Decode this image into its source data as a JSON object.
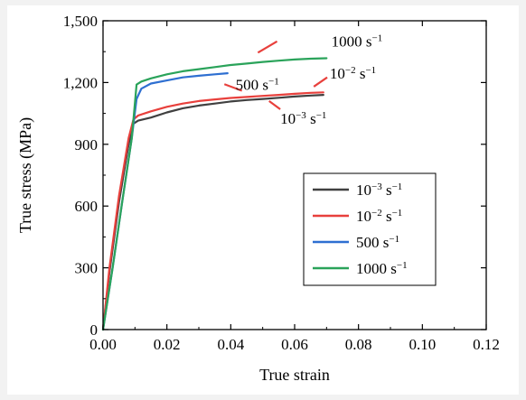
{
  "chart_data": {
    "type": "line",
    "xlabel": "True strain",
    "ylabel": "True stress (MPa)",
    "xlim": [
      0,
      0.12
    ],
    "ylim": [
      0,
      1500
    ],
    "x_ticks": [
      "0.00",
      "0.02",
      "0.04",
      "0.06",
      "0.08",
      "0.10",
      "0.12"
    ],
    "y_ticks": [
      "0",
      "300",
      "600",
      "900",
      "1,200",
      "1,500"
    ],
    "grid": false,
    "legend_position": "right",
    "series": [
      {
        "name": "10⁻³ s⁻¹",
        "color": "#404040",
        "x": [
          0,
          0.002,
          0.005,
          0.008,
          0.0095,
          0.011,
          0.015,
          0.02,
          0.025,
          0.03,
          0.035,
          0.04,
          0.045,
          0.05,
          0.055,
          0.06,
          0.065,
          0.069
        ],
        "y": [
          0,
          280,
          620,
          900,
          1000,
          1015,
          1030,
          1055,
          1075,
          1088,
          1098,
          1108,
          1115,
          1120,
          1126,
          1132,
          1137,
          1140
        ]
      },
      {
        "name": "10⁻² s⁻¹",
        "color": "#e8403c",
        "x": [
          0,
          0.002,
          0.005,
          0.008,
          0.0095,
          0.011,
          0.015,
          0.02,
          0.025,
          0.03,
          0.035,
          0.04,
          0.045,
          0.05,
          0.055,
          0.06,
          0.065,
          0.069
        ],
        "y": [
          0,
          300,
          650,
          930,
          1020,
          1040,
          1060,
          1082,
          1098,
          1110,
          1118,
          1125,
          1130,
          1135,
          1140,
          1145,
          1150,
          1152
        ]
      },
      {
        "name": "500 s⁻¹",
        "color": "#2e6fd1",
        "x": [
          0,
          0.003,
          0.006,
          0.009,
          0.0105,
          0.012,
          0.015,
          0.02,
          0.025,
          0.03,
          0.035,
          0.039
        ],
        "y": [
          0,
          300,
          620,
          930,
          1120,
          1170,
          1195,
          1210,
          1225,
          1233,
          1240,
          1245
        ]
      },
      {
        "name": "1000 s⁻¹",
        "color": "#2aa35a",
        "x": [
          0,
          0.003,
          0.006,
          0.009,
          0.0105,
          0.012,
          0.015,
          0.02,
          0.025,
          0.03,
          0.035,
          0.04,
          0.045,
          0.05,
          0.055,
          0.06,
          0.065,
          0.07
        ],
        "y": [
          0,
          300,
          620,
          930,
          1190,
          1205,
          1220,
          1240,
          1255,
          1265,
          1275,
          1285,
          1292,
          1300,
          1306,
          1312,
          1316,
          1318
        ]
      }
    ],
    "annotations": [
      {
        "text": "1000 s⁻¹",
        "x": 0.0715,
        "y": 1375
      },
      {
        "text": "500 s⁻¹",
        "x": 0.0415,
        "y": 1165
      },
      {
        "text": "10⁻² s⁻¹",
        "x": 0.071,
        "y": 1220
      },
      {
        "text": "10⁻³ s⁻¹",
        "x": 0.0555,
        "y": 1000
      }
    ],
    "annotation_ticks": [
      {
        "x1": 0.0485,
        "y1": 1345,
        "x2": 0.0545,
        "y2": 1400
      },
      {
        "x1": 0.038,
        "y1": 1192,
        "x2": 0.0435,
        "y2": 1160
      },
      {
        "x1": 0.066,
        "y1": 1180,
        "x2": 0.0702,
        "y2": 1225
      },
      {
        "x1": 0.052,
        "y1": 1110,
        "x2": 0.0555,
        "y2": 1070
      }
    ]
  }
}
